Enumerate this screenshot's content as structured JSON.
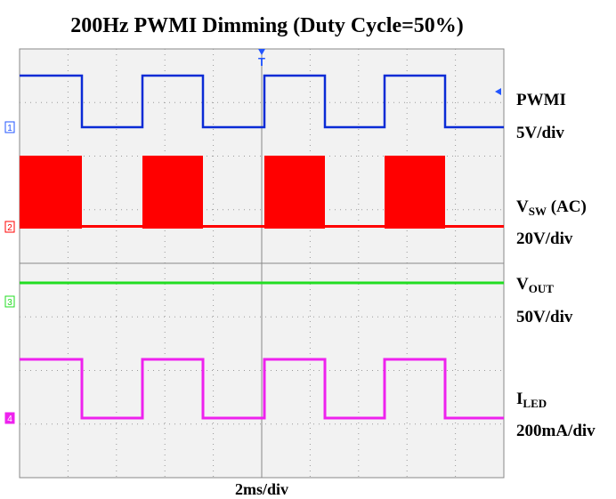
{
  "title": "200Hz PWMI Dimming (Duty Cycle=50%)",
  "timebase": "2ms/div",
  "trigger": "T",
  "channels": [
    {
      "number": "1",
      "label": {
        "main": "PWMI"
      },
      "scale": "5V/div"
    },
    {
      "number": "2",
      "label": {
        "main": "V",
        "sub": "SW",
        "suffix": " (AC)"
      },
      "scale": "20V/div"
    },
    {
      "number": "3",
      "label": {
        "main": "V",
        "sub": "OUT"
      },
      "scale": "50V/div"
    },
    {
      "number": "4",
      "label": {
        "main": "I",
        "sub": "LED"
      },
      "scale": "200mA/div"
    }
  ]
}
